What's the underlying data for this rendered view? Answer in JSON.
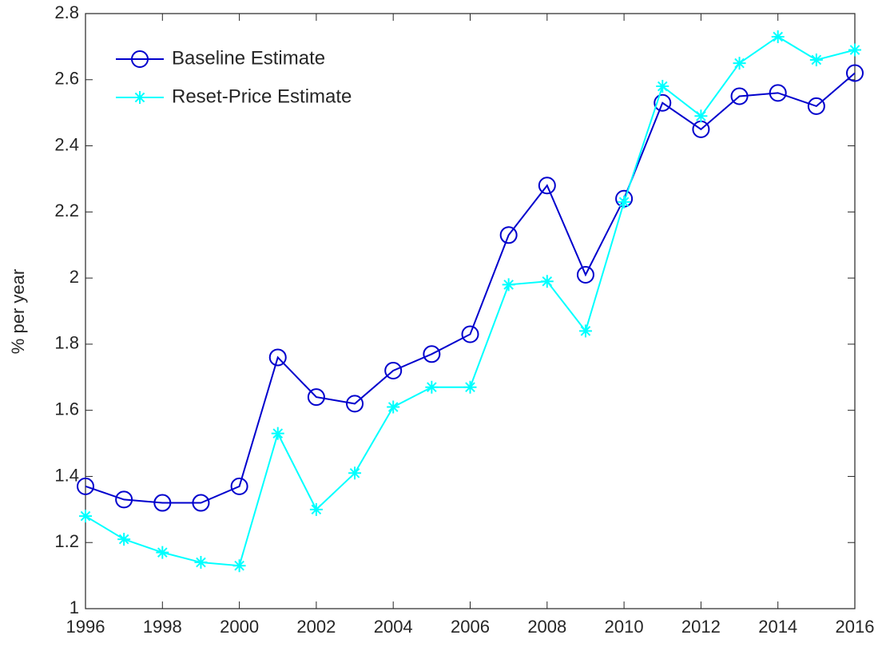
{
  "chart_data": {
    "type": "line",
    "ylabel": "% per year",
    "x": [
      1996,
      1997,
      1998,
      1999,
      2000,
      2001,
      2002,
      2003,
      2004,
      2005,
      2006,
      2007,
      2008,
      2009,
      2010,
      2011,
      2012,
      2013,
      2014,
      2015,
      2016
    ],
    "series": [
      {
        "name": "Baseline Estimate",
        "color": "#0000cd",
        "marker": "circle",
        "values": [
          1.37,
          1.33,
          1.32,
          1.32,
          1.37,
          1.76,
          1.64,
          1.62,
          1.72,
          1.77,
          1.83,
          2.13,
          2.28,
          2.01,
          2.24,
          2.53,
          2.45,
          2.55,
          2.56,
          2.52,
          2.62
        ]
      },
      {
        "name": "Reset-Price Estimate",
        "color": "#00ffff",
        "marker": "asterisk",
        "values": [
          1.28,
          1.21,
          1.17,
          1.14,
          1.13,
          1.53,
          1.3,
          1.41,
          1.61,
          1.67,
          1.67,
          1.98,
          1.99,
          1.84,
          2.23,
          2.58,
          2.49,
          2.65,
          2.73,
          2.66,
          2.69
        ]
      }
    ],
    "xlim": [
      1996,
      2016
    ],
    "xticks": [
      1996,
      1998,
      2000,
      2002,
      2004,
      2006,
      2008,
      2010,
      2012,
      2014,
      2016
    ],
    "ylim": [
      1,
      2.8
    ],
    "yticks": [
      1,
      1.2,
      1.4,
      1.6,
      1.8,
      2,
      2.2,
      2.4,
      2.6,
      2.8
    ],
    "grid": false,
    "legend": "top-left"
  }
}
